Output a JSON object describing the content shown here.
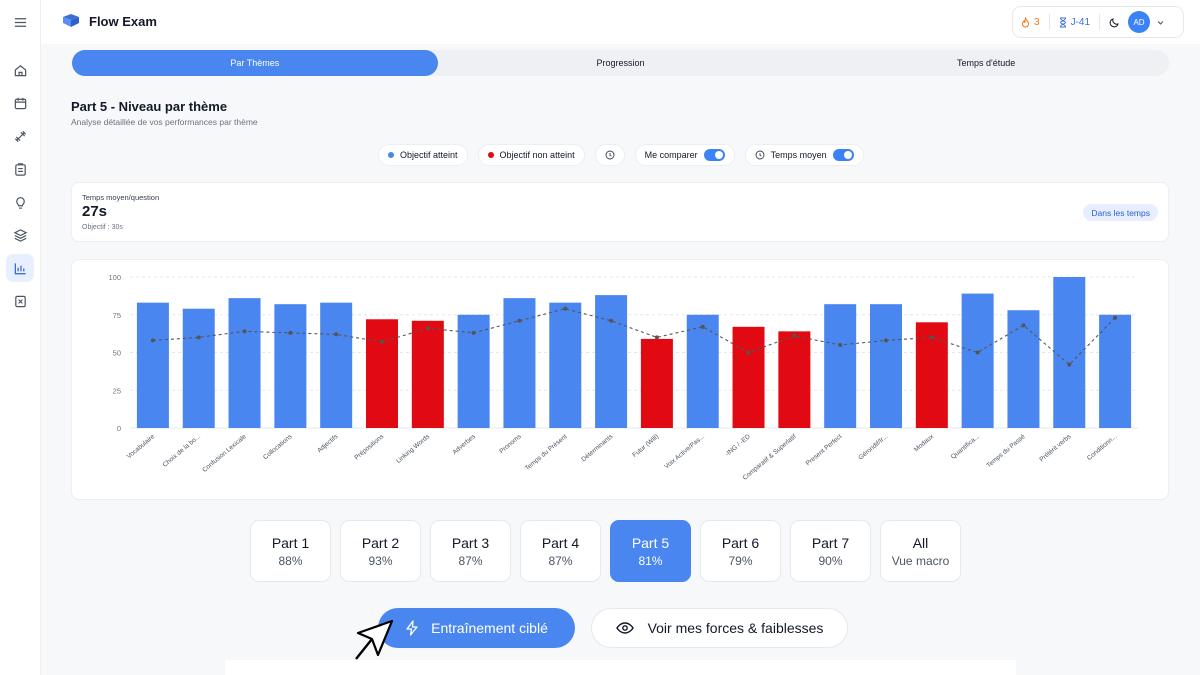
{
  "app": {
    "title": "Flow Exam"
  },
  "sidebar": {
    "icons": [
      "menu-icon",
      "home-icon",
      "calendar-icon",
      "dumbbell-icon",
      "clipboard-icon",
      "lightbulb-icon",
      "layers-icon",
      "chart-icon",
      "exam-icon"
    ],
    "active": "chart-icon"
  },
  "user": {
    "streak": "3",
    "countdown": "J-41",
    "avatar": "AD"
  },
  "tabs": [
    {
      "label": "Par Thèmes",
      "active": true
    },
    {
      "label": "Progression",
      "active": false
    },
    {
      "label": "Temps d'étude",
      "active": false
    }
  ],
  "section": {
    "title": "Part 5 - Niveau par thème",
    "subtitle": "Analyse détaillée de vos performances par thème"
  },
  "filters": {
    "achieved": "Objectif atteint",
    "not_achieved": "Objectif non atteint",
    "compare": "Me comparer",
    "avg_time": "Temps moyen"
  },
  "time_card": {
    "label": "Temps moyen/question",
    "value": "27s",
    "goal": "Objectif : 30s",
    "badge": "Dans les temps"
  },
  "colors": {
    "achieved": "#4a86f0",
    "not_achieved": "#e10a12",
    "accent": "#4a86f0"
  },
  "chart_data": {
    "type": "bar",
    "ylim": [
      0,
      100
    ],
    "yticks": [
      0,
      25,
      50,
      75,
      100
    ],
    "grid": true,
    "categories": [
      "Vocabulaire",
      "Choix de la bo...",
      "Confusion Lexicale",
      "Collocations",
      "Adjectifs",
      "Prépositions",
      "Linking Words",
      "Adverbes",
      "Pronoms",
      "Temps du Présent",
      "Déterminants",
      "Futur (Will)",
      "Voix Active/Pas...",
      "-ING / -ED",
      "Comparatif & Superlatif",
      "Present Perfect",
      "Gérondif/Ir...",
      "Modaux",
      "Quantifica...",
      "Temps du Passé",
      "Prétérit verbs",
      "Conditionn..."
    ],
    "series": [
      {
        "values": [
          83,
          79,
          86,
          82,
          83,
          72,
          71,
          75,
          86,
          83,
          88,
          59,
          75,
          67,
          64,
          82,
          82,
          70,
          89,
          78,
          100,
          75
        ]
      },
      {
        "values": [
          58,
          60,
          64,
          63,
          62,
          57,
          66,
          63,
          71,
          79,
          71,
          60,
          67,
          50,
          61,
          55,
          58,
          60,
          50,
          68,
          42,
          73
        ]
      }
    ],
    "status": [
      "achieved",
      "achieved",
      "achieved",
      "achieved",
      "achieved",
      "not",
      "not",
      "achieved",
      "achieved",
      "achieved",
      "achieved",
      "not",
      "achieved",
      "not",
      "not",
      "achieved",
      "achieved",
      "not",
      "achieved",
      "achieved",
      "achieved",
      "achieved"
    ]
  },
  "parts": [
    {
      "name": "Part 1",
      "value": "88%",
      "active": false
    },
    {
      "name": "Part 2",
      "value": "93%",
      "active": false
    },
    {
      "name": "Part 3",
      "value": "87%",
      "active": false
    },
    {
      "name": "Part 4",
      "value": "87%",
      "active": false
    },
    {
      "name": "Part 5",
      "value": "81%",
      "active": true
    },
    {
      "name": "Part 6",
      "value": "79%",
      "active": false
    },
    {
      "name": "Part 7",
      "value": "90%",
      "active": false
    },
    {
      "name": "All",
      "value": "Vue macro",
      "active": false
    }
  ],
  "actions": {
    "primary": "Entraînement ciblé",
    "secondary": "Voir mes forces & faiblesses"
  }
}
